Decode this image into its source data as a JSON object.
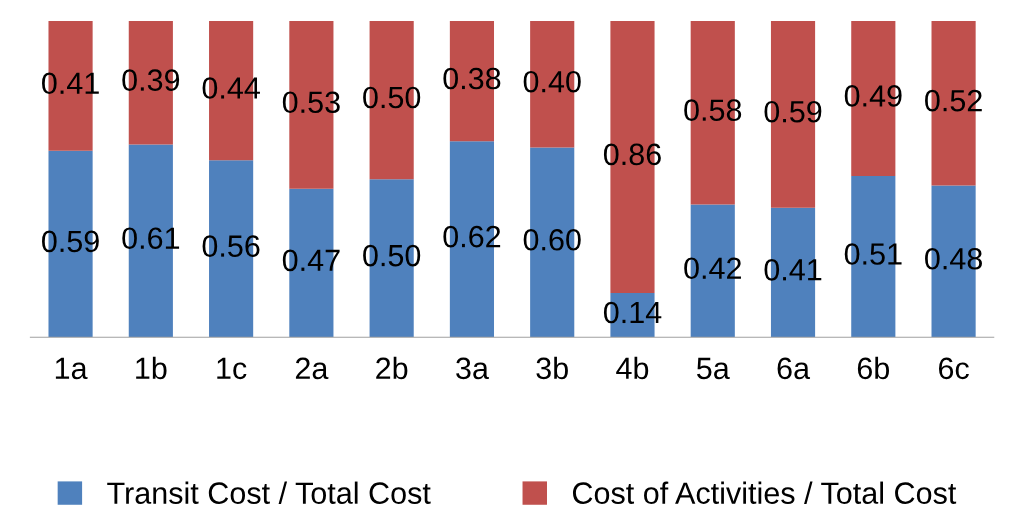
{
  "chart_data": {
    "type": "bar",
    "stacked": true,
    "categories": [
      "1a",
      "1b",
      "1c",
      "2a",
      "2b",
      "3a",
      "3b",
      "4b",
      "5a",
      "6a",
      "6b",
      "6c"
    ],
    "series": [
      {
        "name": "Transit Cost / Total Cost",
        "color": "#4f81bd",
        "values": [
          0.59,
          0.61,
          0.56,
          0.47,
          0.5,
          0.62,
          0.6,
          0.14,
          0.42,
          0.41,
          0.51,
          0.48
        ],
        "value_labels": [
          "0.59",
          "0.61",
          "0.56",
          "0.47",
          "0.50",
          "0.62",
          "0.60",
          "0.14",
          "0.42",
          "0.41",
          "0.51",
          "0.48"
        ]
      },
      {
        "name": "Cost of Activities / Total Cost",
        "color": "#c0504d",
        "values": [
          0.41,
          0.39,
          0.44,
          0.53,
          0.5,
          0.38,
          0.4,
          0.86,
          0.58,
          0.59,
          0.49,
          0.52
        ],
        "value_labels": [
          "0.41",
          "0.39",
          "0.44",
          "0.53",
          "0.50",
          "0.38",
          "0.40",
          "0.86",
          "0.58",
          "0.59",
          "0.49",
          "0.52"
        ]
      }
    ],
    "ylim": [
      0,
      1
    ],
    "tick_labels": "x",
    "legend": "bottom",
    "grid": false
  }
}
